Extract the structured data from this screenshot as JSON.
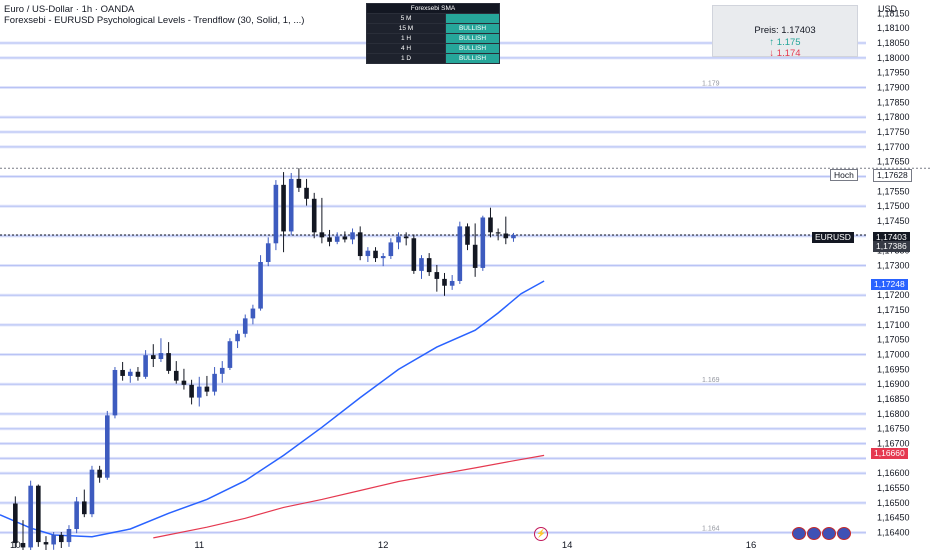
{
  "chart_title": "Euro / US-Dollar · 1h · OANDA",
  "indicator_title": "Forexsebi - EURUSD Psychological Levels - Trendflow (30, Solid, 1, ...)",
  "axis_unit": "USD",
  "sma_table": {
    "header": "Forexsebi SMA",
    "rows": [
      {
        "tf": "5 M",
        "status": ""
      },
      {
        "tf": "15 M",
        "status": "BULLISH"
      },
      {
        "tf": "1 H",
        "status": "BULLISH"
      },
      {
        "tf": "4 H",
        "status": "BULLISH"
      },
      {
        "tf": "1 D",
        "status": "BULLISH"
      }
    ]
  },
  "price_box": {
    "price_label": "Preis: 1.17403",
    "up_label": "↑ 1.175",
    "down_label": "↓ 1.174"
  },
  "badges": {
    "hoch": "Hoch",
    "hoch_value": "1,17628",
    "symbol": "EURUSD",
    "last_price": "1,17403",
    "prev": "1,17386",
    "blue_ma": "1,17248",
    "red_ma": "1,16660"
  },
  "colors": {
    "up": "#3d5bbf",
    "down": "#131722",
    "grid_line": "#b9c3f5",
    "blue_ma": "#2962ff",
    "red_ma": "#e53950",
    "table_green": "#26a69a"
  },
  "chart_data": {
    "type": "candlestick",
    "y_ticks": [
      "1,18150",
      "1,18100",
      "1,18050",
      "1,18000",
      "1,17950",
      "1,17900",
      "1,17850",
      "1,17800",
      "1,17750",
      "1,17700",
      "1,17650",
      "1,17600",
      "1,17550",
      "1,17500",
      "1,17450",
      "1,17350",
      "1,17300",
      "1,17200",
      "1,17150",
      "1,17100",
      "1,17050",
      "1,17000",
      "1,16950",
      "1,16900",
      "1,16850",
      "1,16800",
      "1,16750",
      "1,16700",
      "1,16600",
      "1,16550",
      "1,16500",
      "1,16450",
      "1,16400"
    ],
    "x_ticks": [
      {
        "label": "10",
        "x": 0
      },
      {
        "label": "11",
        "x": 24
      },
      {
        "label": "12",
        "x": 48
      },
      {
        "label": "14",
        "x": 72
      },
      {
        "label": "16",
        "x": 96
      }
    ],
    "x_range": [
      -2,
      111
    ],
    "y_range": [
      1.16375,
      1.18195
    ],
    "level_lines": [
      1.184,
      1.1805,
      1.18,
      1.179,
      1.178,
      1.1775,
      1.177,
      1.176,
      1.175,
      1.174,
      1.173,
      1.172,
      1.171,
      1.17,
      1.169,
      1.168,
      1.1675,
      1.167,
      1.1665,
      1.166,
      1.165,
      1.164
    ],
    "level_labels": [
      {
        "label": "1.179",
        "y": 1.179
      },
      {
        "label": "1.169",
        "y": 1.169
      },
      {
        "label": "1.164",
        "y": 1.164
      }
    ],
    "reference_lines": {
      "hoch": 1.17628,
      "last": 1.17403
    },
    "candles": [
      {
        "o": 1.16498,
        "h": 1.16522,
        "l": 1.16348,
        "c": 1.16365
      },
      {
        "o": 1.16365,
        "h": 1.16442,
        "l": 1.1633,
        "c": 1.1635
      },
      {
        "o": 1.1635,
        "h": 1.16575,
        "l": 1.16335,
        "c": 1.16558
      },
      {
        "o": 1.16558,
        "h": 1.16562,
        "l": 1.16352,
        "c": 1.16368
      },
      {
        "o": 1.16368,
        "h": 1.16388,
        "l": 1.16338,
        "c": 1.1636
      },
      {
        "o": 1.1636,
        "h": 1.16402,
        "l": 1.16342,
        "c": 1.16392
      },
      {
        "o": 1.16392,
        "h": 1.16402,
        "l": 1.16348,
        "c": 1.16368
      },
      {
        "o": 1.16368,
        "h": 1.16425,
        "l": 1.16352,
        "c": 1.16412
      },
      {
        "o": 1.16412,
        "h": 1.1652,
        "l": 1.16398,
        "c": 1.16505
      },
      {
        "o": 1.16505,
        "h": 1.16545,
        "l": 1.16452,
        "c": 1.16462
      },
      {
        "o": 1.16462,
        "h": 1.16625,
        "l": 1.16452,
        "c": 1.16612
      },
      {
        "o": 1.16612,
        "h": 1.16625,
        "l": 1.16568,
        "c": 1.16585
      },
      {
        "o": 1.16585,
        "h": 1.1681,
        "l": 1.16578,
        "c": 1.16795
      },
      {
        "o": 1.16795,
        "h": 1.16958,
        "l": 1.16785,
        "c": 1.16948
      },
      {
        "o": 1.16948,
        "h": 1.16975,
        "l": 1.16912,
        "c": 1.16928
      },
      {
        "o": 1.16928,
        "h": 1.16952,
        "l": 1.16905,
        "c": 1.16942
      },
      {
        "o": 1.16942,
        "h": 1.16958,
        "l": 1.16912,
        "c": 1.16925
      },
      {
        "o": 1.16925,
        "h": 1.17015,
        "l": 1.16918,
        "c": 1.16998
      },
      {
        "o": 1.16998,
        "h": 1.17035,
        "l": 1.16958,
        "c": 1.16985
      },
      {
        "o": 1.16985,
        "h": 1.17055,
        "l": 1.16975,
        "c": 1.17005
      },
      {
        "o": 1.17005,
        "h": 1.17042,
        "l": 1.16935,
        "c": 1.16945
      },
      {
        "o": 1.16945,
        "h": 1.16978,
        "l": 1.16902,
        "c": 1.16912
      },
      {
        "o": 1.16912,
        "h": 1.16952,
        "l": 1.16882,
        "c": 1.16898
      },
      {
        "o": 1.16898,
        "h": 1.16915,
        "l": 1.16832,
        "c": 1.16855
      },
      {
        "o": 1.16855,
        "h": 1.16925,
        "l": 1.16825,
        "c": 1.16892
      },
      {
        "o": 1.16892,
        "h": 1.16928,
        "l": 1.1686,
        "c": 1.16875
      },
      {
        "o": 1.16875,
        "h": 1.16958,
        "l": 1.16862,
        "c": 1.16935
      },
      {
        "o": 1.16935,
        "h": 1.16978,
        "l": 1.16905,
        "c": 1.16955
      },
      {
        "o": 1.16955,
        "h": 1.17055,
        "l": 1.16948,
        "c": 1.17045
      },
      {
        "o": 1.17045,
        "h": 1.17082,
        "l": 1.17022,
        "c": 1.1707
      },
      {
        "o": 1.1707,
        "h": 1.17135,
        "l": 1.17058,
        "c": 1.17122
      },
      {
        "o": 1.17122,
        "h": 1.17168,
        "l": 1.17102,
        "c": 1.17155
      },
      {
        "o": 1.17155,
        "h": 1.17335,
        "l": 1.17148,
        "c": 1.17312
      },
      {
        "o": 1.17312,
        "h": 1.17395,
        "l": 1.17298,
        "c": 1.17375
      },
      {
        "o": 1.17375,
        "h": 1.17588,
        "l": 1.17352,
        "c": 1.17572
      },
      {
        "o": 1.17572,
        "h": 1.17615,
        "l": 1.17345,
        "c": 1.17415
      },
      {
        "o": 1.17415,
        "h": 1.17612,
        "l": 1.17402,
        "c": 1.17592
      },
      {
        "o": 1.17592,
        "h": 1.17628,
        "l": 1.17548,
        "c": 1.17562
      },
      {
        "o": 1.17562,
        "h": 1.17592,
        "l": 1.17502,
        "c": 1.17525
      },
      {
        "o": 1.17525,
        "h": 1.17545,
        "l": 1.17392,
        "c": 1.17412
      },
      {
        "o": 1.17412,
        "h": 1.17528,
        "l": 1.17375,
        "c": 1.17395
      },
      {
        "o": 1.17395,
        "h": 1.1742,
        "l": 1.17365,
        "c": 1.1738
      },
      {
        "o": 1.1738,
        "h": 1.17412,
        "l": 1.17372,
        "c": 1.17398
      },
      {
        "o": 1.17398,
        "h": 1.17415,
        "l": 1.17378,
        "c": 1.17388
      },
      {
        "o": 1.17388,
        "h": 1.17425,
        "l": 1.17372,
        "c": 1.17412
      },
      {
        "o": 1.17412,
        "h": 1.17432,
        "l": 1.17318,
        "c": 1.17332
      },
      {
        "o": 1.17332,
        "h": 1.17362,
        "l": 1.17312,
        "c": 1.1735
      },
      {
        "o": 1.1735,
        "h": 1.17362,
        "l": 1.17312,
        "c": 1.17325
      },
      {
        "o": 1.17325,
        "h": 1.17342,
        "l": 1.17298,
        "c": 1.17332
      },
      {
        "o": 1.17332,
        "h": 1.17392,
        "l": 1.17322,
        "c": 1.17378
      },
      {
        "o": 1.17378,
        "h": 1.17412,
        "l": 1.17355,
        "c": 1.17398
      },
      {
        "o": 1.17398,
        "h": 1.17412,
        "l": 1.17368,
        "c": 1.17392
      },
      {
        "o": 1.17392,
        "h": 1.17405,
        "l": 1.17272,
        "c": 1.17282
      },
      {
        "o": 1.17282,
        "h": 1.17335,
        "l": 1.17255,
        "c": 1.17325
      },
      {
        "o": 1.17325,
        "h": 1.17342,
        "l": 1.17265,
        "c": 1.17278
      },
      {
        "o": 1.17278,
        "h": 1.17302,
        "l": 1.17212,
        "c": 1.17255
      },
      {
        "o": 1.17255,
        "h": 1.17275,
        "l": 1.17198,
        "c": 1.17232
      },
      {
        "o": 1.17232,
        "h": 1.17268,
        "l": 1.17218,
        "c": 1.17248
      },
      {
        "o": 1.17248,
        "h": 1.17448,
        "l": 1.17238,
        "c": 1.17432
      },
      {
        "o": 1.17432,
        "h": 1.17442,
        "l": 1.17352,
        "c": 1.1737
      },
      {
        "o": 1.1737,
        "h": 1.17442,
        "l": 1.17262,
        "c": 1.17292
      },
      {
        "o": 1.17292,
        "h": 1.17468,
        "l": 1.17282,
        "c": 1.17462
      },
      {
        "o": 1.17462,
        "h": 1.17495,
        "l": 1.17395,
        "c": 1.17412
      },
      {
        "o": 1.17412,
        "h": 1.17425,
        "l": 1.17385,
        "c": 1.17408
      },
      {
        "o": 1.17408,
        "h": 1.17465,
        "l": 1.17372,
        "c": 1.17392
      },
      {
        "o": 1.17392,
        "h": 1.1741,
        "l": 1.1738,
        "c": 1.17403
      }
    ],
    "blue_ma": [
      [
        -2,
        1.1646
      ],
      [
        2,
        1.16415
      ],
      [
        5,
        1.16392
      ],
      [
        10,
        1.16386
      ],
      [
        15,
        1.16412
      ],
      [
        20,
        1.16465
      ],
      [
        25,
        1.16512
      ],
      [
        30,
        1.16575
      ],
      [
        35,
        1.1666
      ],
      [
        40,
        1.16755
      ],
      [
        45,
        1.16855
      ],
      [
        50,
        1.1695
      ],
      [
        55,
        1.17025
      ],
      [
        60,
        1.17082
      ],
      [
        63,
        1.1714
      ],
      [
        66,
        1.17205
      ],
      [
        69,
        1.17248
      ]
    ],
    "red_ma": [
      [
        18,
        1.16382
      ],
      [
        25,
        1.16418
      ],
      [
        30,
        1.16448
      ],
      [
        35,
        1.16485
      ],
      [
        40,
        1.16512
      ],
      [
        45,
        1.16542
      ],
      [
        50,
        1.16572
      ],
      [
        55,
        1.16595
      ],
      [
        60,
        1.16618
      ],
      [
        65,
        1.16642
      ],
      [
        69,
        1.1666
      ]
    ]
  }
}
